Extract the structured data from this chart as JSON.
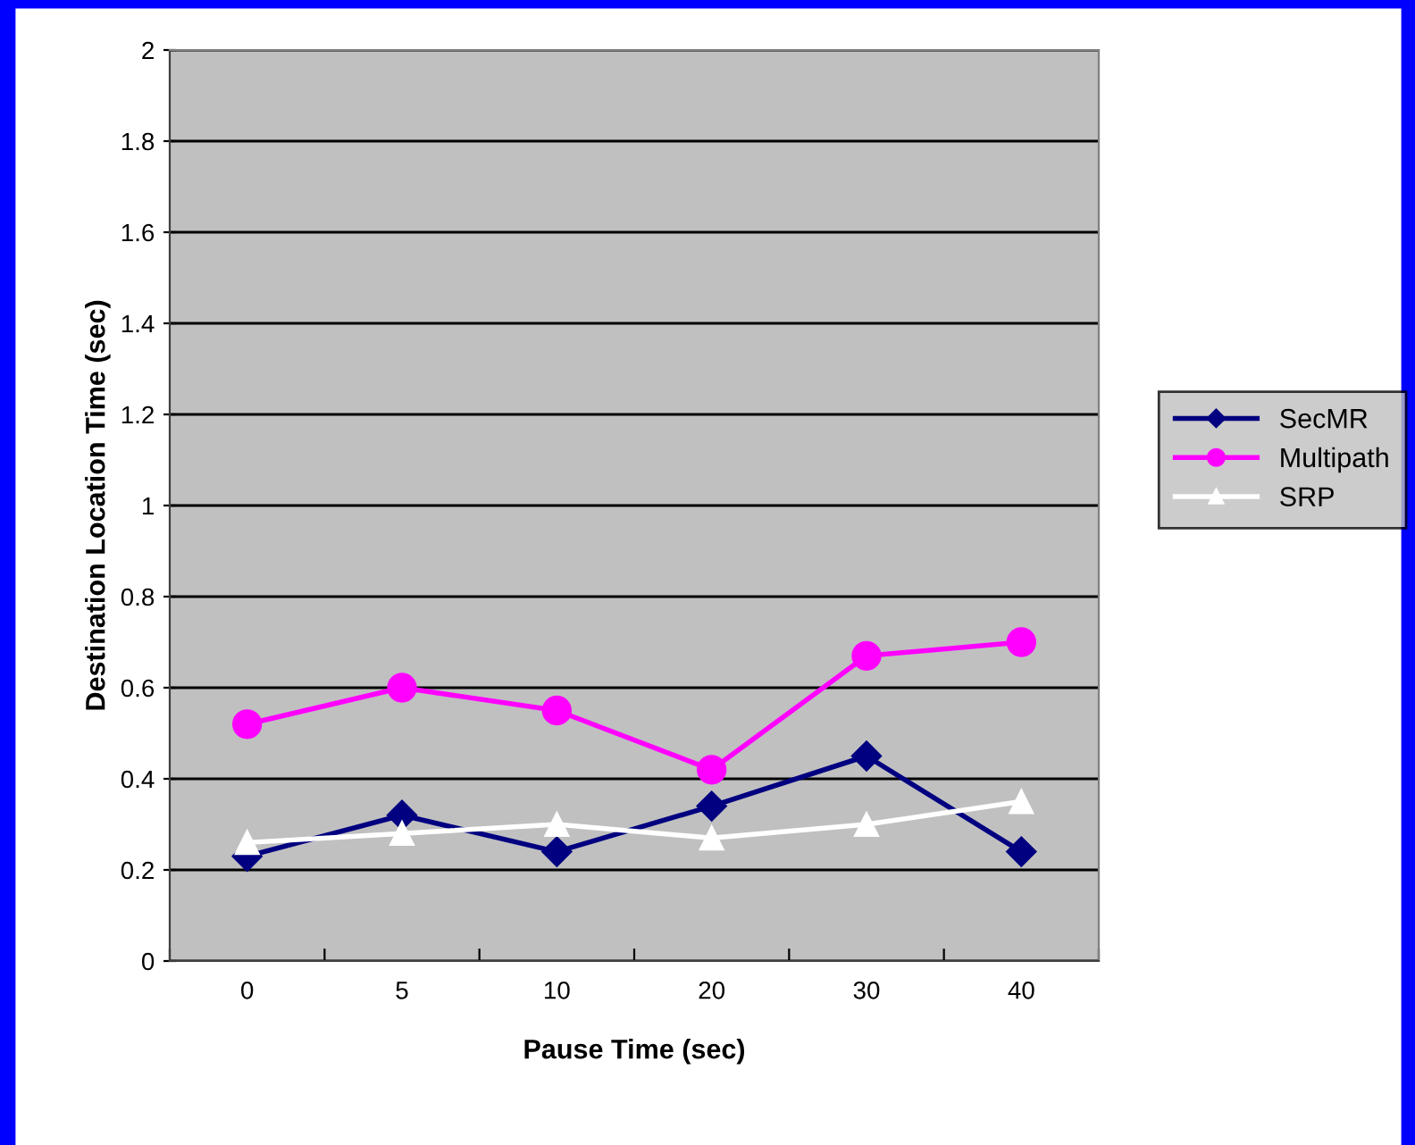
{
  "chart_data": {
    "type": "line",
    "xlabel": "Pause Time (sec)",
    "ylabel": "Destination Location Time (sec)",
    "categories": [
      "0",
      "5",
      "10",
      "20",
      "30",
      "40"
    ],
    "series": [
      {
        "name": "SecMR",
        "color": "#000080",
        "marker": "diamond",
        "values": [
          0.23,
          0.32,
          0.24,
          0.34,
          0.45,
          0.24
        ]
      },
      {
        "name": "Multipath",
        "color": "#ff00ff",
        "marker": "circle",
        "values": [
          0.52,
          0.6,
          0.55,
          0.42,
          0.67,
          0.7
        ]
      },
      {
        "name": "SRP",
        "color": "#ffffff",
        "marker": "triangle",
        "values": [
          0.26,
          0.28,
          0.3,
          0.27,
          0.3,
          0.35
        ]
      }
    ],
    "ylim": [
      0,
      2
    ],
    "yticks": [
      0,
      0.2,
      0.4,
      0.6,
      0.8,
      1,
      1.2,
      1.4,
      1.6,
      1.8,
      2
    ],
    "grid": "y",
    "legend": "right"
  }
}
